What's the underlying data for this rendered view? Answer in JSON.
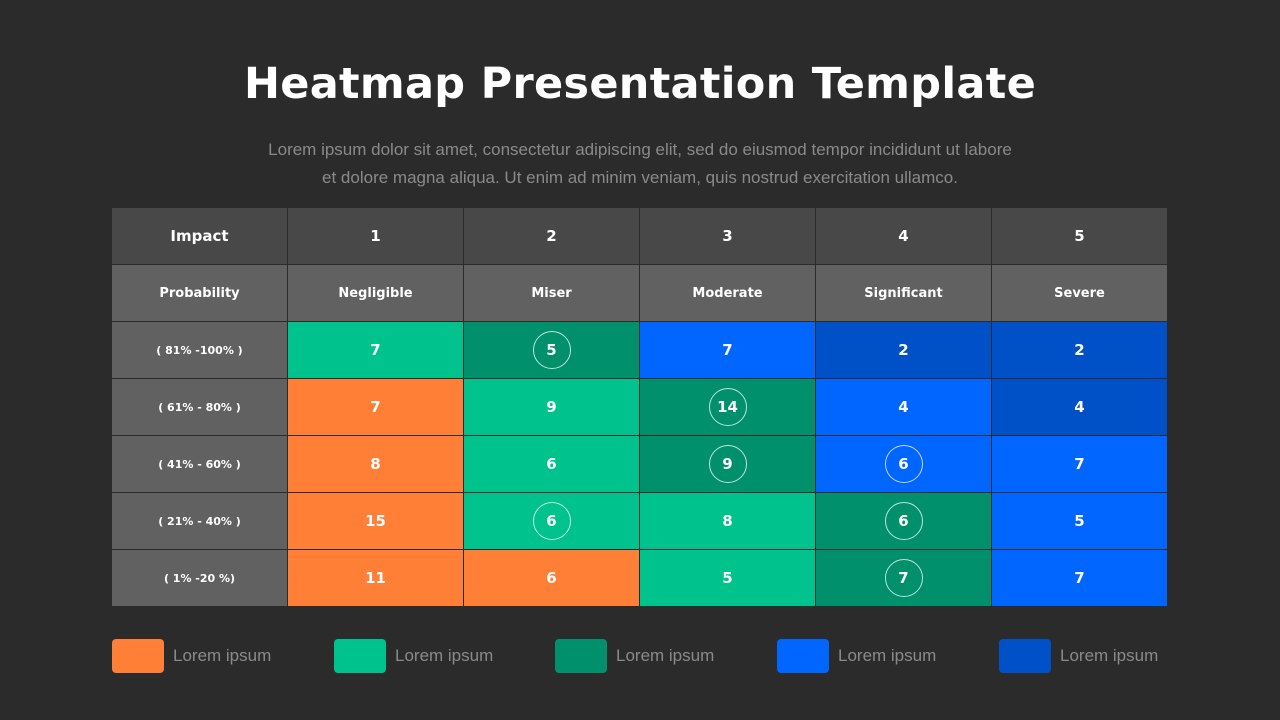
{
  "title": "Heatmap Presentation Template",
  "subtitle_lines": [
    "Lorem ipsum dolor sit amet, consectetur adipiscing elit, sed do eiusmod tempor incididunt ut labore",
    "et dolore magna aliqua. Ut enim ad minim veniam, quis nostrud exercitation ullamco."
  ],
  "colors": {
    "orange": "#fe7f35",
    "light_green": "#00c28c",
    "dark_green": "#00906c",
    "blue": "#0066ff",
    "dark_blue": "#0050c8"
  },
  "table": {
    "impact_header": [
      "Impact",
      "1",
      "2",
      "3",
      "4",
      "5"
    ],
    "probability_header": [
      "Probability",
      "Negligible",
      "Miser",
      "Moderate",
      "Significant",
      "Severe"
    ],
    "rows": [
      {
        "label": "( 81% -100% )",
        "cells": [
          {
            "value": "7",
            "color": "light_green",
            "circled": false
          },
          {
            "value": "5",
            "color": "dark_green",
            "circled": true
          },
          {
            "value": "7",
            "color": "blue",
            "circled": false
          },
          {
            "value": "2",
            "color": "dark_blue",
            "circled": false
          },
          {
            "value": "2",
            "color": "dark_blue",
            "circled": false
          }
        ]
      },
      {
        "label": "( 61% - 80% )",
        "cells": [
          {
            "value": "7",
            "color": "orange",
            "circled": false
          },
          {
            "value": "9",
            "color": "light_green",
            "circled": false
          },
          {
            "value": "14",
            "color": "dark_green",
            "circled": true
          },
          {
            "value": "4",
            "color": "blue",
            "circled": false
          },
          {
            "value": "4",
            "color": "dark_blue",
            "circled": false
          }
        ]
      },
      {
        "label": "( 41% - 60% )",
        "cells": [
          {
            "value": "8",
            "color": "orange",
            "circled": false
          },
          {
            "value": "6",
            "color": "light_green",
            "circled": false
          },
          {
            "value": "9",
            "color": "dark_green",
            "circled": true
          },
          {
            "value": "6",
            "color": "blue",
            "circled": true
          },
          {
            "value": "7",
            "color": "blue",
            "circled": false
          }
        ]
      },
      {
        "label": "( 21% - 40% )",
        "cells": [
          {
            "value": "15",
            "color": "orange",
            "circled": false
          },
          {
            "value": "6",
            "color": "light_green",
            "circled": true
          },
          {
            "value": "8",
            "color": "light_green",
            "circled": false
          },
          {
            "value": "6",
            "color": "dark_green",
            "circled": true
          },
          {
            "value": "5",
            "color": "blue",
            "circled": false
          }
        ]
      },
      {
        "label": "( 1% -20 %)",
        "cells": [
          {
            "value": "11",
            "color": "orange",
            "circled": false
          },
          {
            "value": "6",
            "color": "orange",
            "circled": false
          },
          {
            "value": "5",
            "color": "light_green",
            "circled": false
          },
          {
            "value": "7",
            "color": "dark_green",
            "circled": true
          },
          {
            "value": "7",
            "color": "blue",
            "circled": false
          }
        ]
      }
    ]
  },
  "legend": [
    {
      "label": "Lorem ipsum",
      "color": "orange"
    },
    {
      "label": "Lorem ipsum",
      "color": "light_green"
    },
    {
      "label": "Lorem ipsum",
      "color": "dark_green"
    },
    {
      "label": "Lorem ipsum",
      "color": "blue"
    },
    {
      "label": "Lorem ipsum",
      "color": "dark_blue"
    }
  ]
}
